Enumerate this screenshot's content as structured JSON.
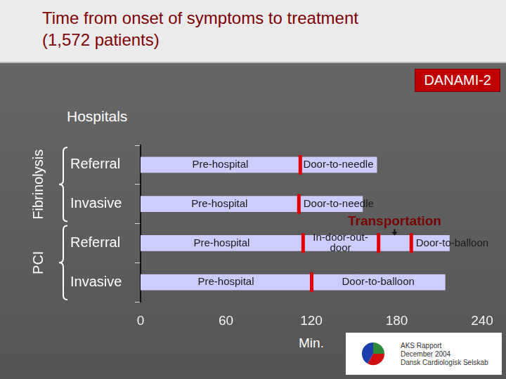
{
  "chart_data": {
    "type": "bar",
    "orientation": "horizontal",
    "stacked": true,
    "title": [
      "Time from onset of symptoms to treatment",
      "(1,572 patients)"
    ],
    "badge": "DANAMI-2",
    "y_header": "Hospitals",
    "xlabel": "Min.",
    "source": [
      "AKS Rapport",
      "December 2004",
      "Dansk Cardiologisk Selskab"
    ],
    "categories": [
      "Referral",
      "Invasive",
      "Referral",
      "Invasive"
    ],
    "groups": [
      "Fibrinolysis",
      "Fibrinolysis",
      "PCI",
      "PCI"
    ],
    "series": [
      {
        "name": "Pre-hospital",
        "color": "#ccccff",
        "values": [
          112,
          111,
          114,
          120
        ]
      },
      {
        "name": "Door-to-needle",
        "color": "#ccccff",
        "values": [
          54,
          45,
          null,
          null
        ]
      },
      {
        "name": "In-door-out-door",
        "color": "#ccccff",
        "values": [
          null,
          null,
          53,
          null
        ]
      },
      {
        "name": "Transportation",
        "color": "#ccccff",
        "values": [
          null,
          null,
          23,
          null
        ]
      },
      {
        "name": "Door-to-balloon",
        "color": "#ccccff",
        "values": [
          null,
          null,
          27,
          94
        ]
      }
    ],
    "xlim": [
      0,
      240
    ],
    "xticks": [
      0,
      60,
      120,
      180,
      240
    ],
    "grid": false
  }
}
